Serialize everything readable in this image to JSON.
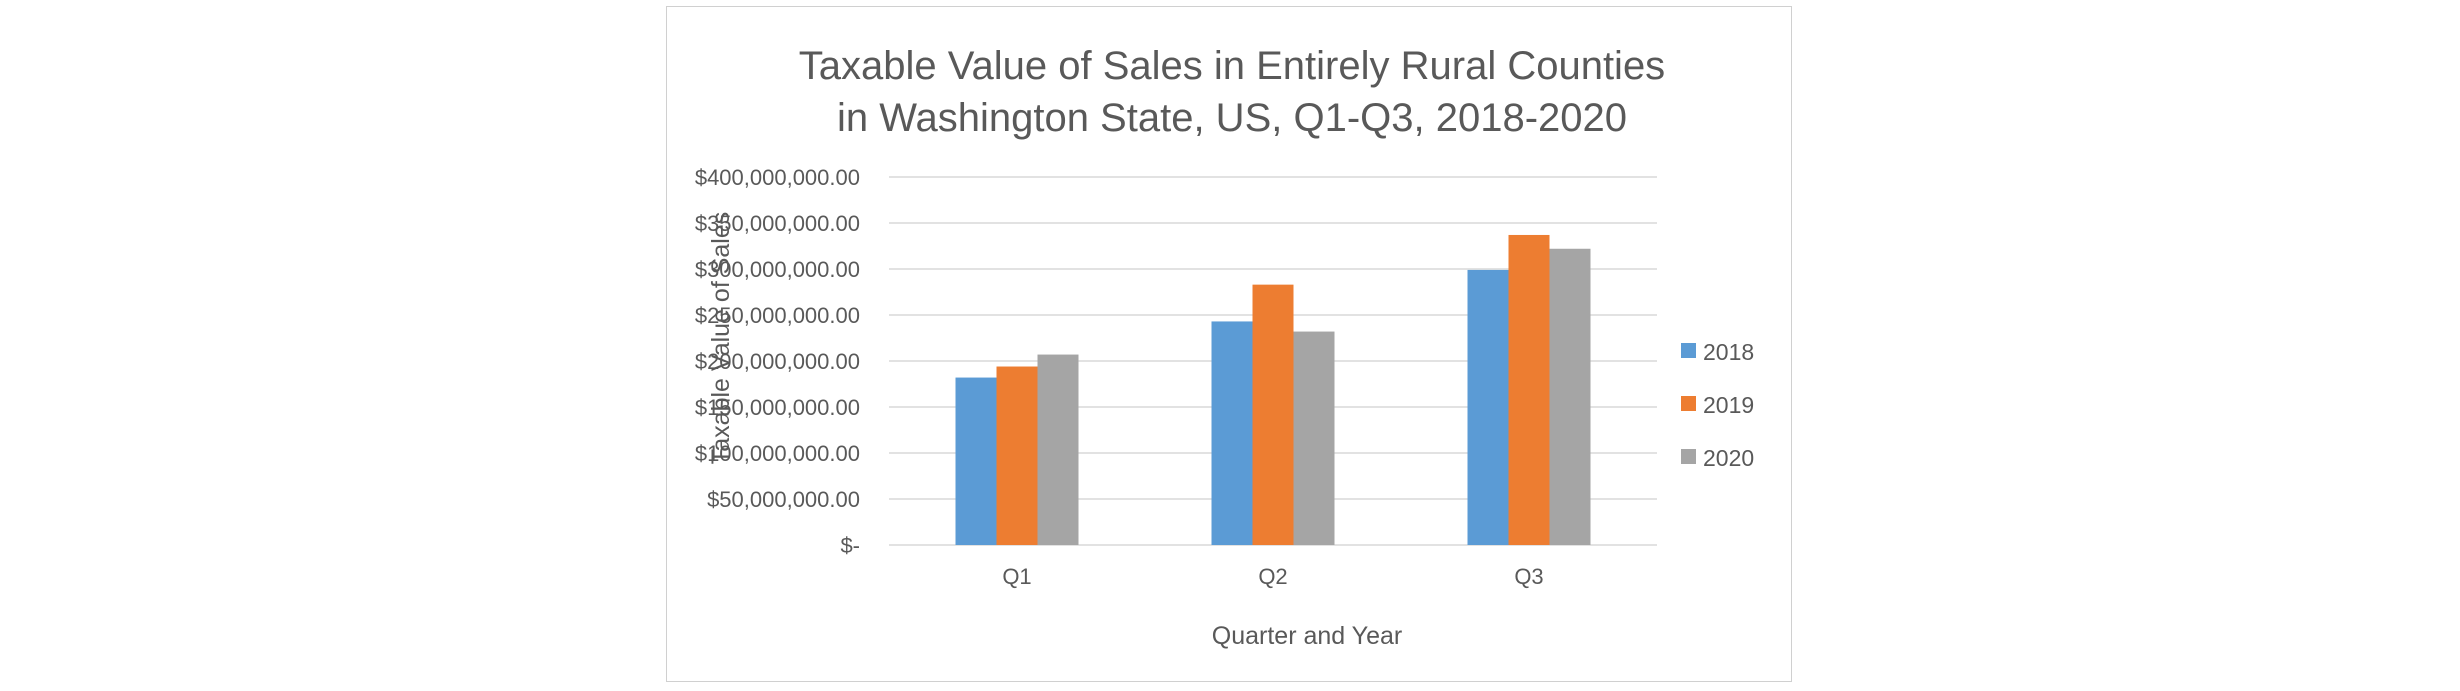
{
  "chart_data": {
    "type": "bar",
    "title_lines": [
      "Taxable Value of Sales in Entirely Rural Counties",
      "in Washington State, US, Q1-Q3, 2018-2020"
    ],
    "xlabel": "Quarter and Year",
    "ylabel": "Taxable Value of Sales",
    "categories": [
      "Q1",
      "Q2",
      "Q3"
    ],
    "series": [
      {
        "name": "2018",
        "color": "#5b9bd5",
        "values": [
          182000000,
          243000000,
          299000000
        ]
      },
      {
        "name": "2019",
        "color": "#ed7d31",
        "values": [
          194000000,
          283000000,
          337000000
        ]
      },
      {
        "name": "2020",
        "color": "#a5a5a5",
        "values": [
          207000000,
          232000000,
          322000000
        ]
      }
    ],
    "ylim": [
      0,
      400000000
    ],
    "yticks": [
      0,
      50000000,
      100000000,
      150000000,
      200000000,
      250000000,
      300000000,
      350000000,
      400000000
    ],
    "ytick_labels": [
      "$-",
      "$50,000,000.00",
      "$100,000,000.00",
      "$150,000,000.00",
      "$200,000,000.00",
      "$250,000,000.00",
      "$300,000,000.00",
      "$350,000,000.00",
      "$400,000,000.00"
    ],
    "grid": true,
    "legend_position": "right",
    "gridline_color": "#d9d9d9"
  }
}
